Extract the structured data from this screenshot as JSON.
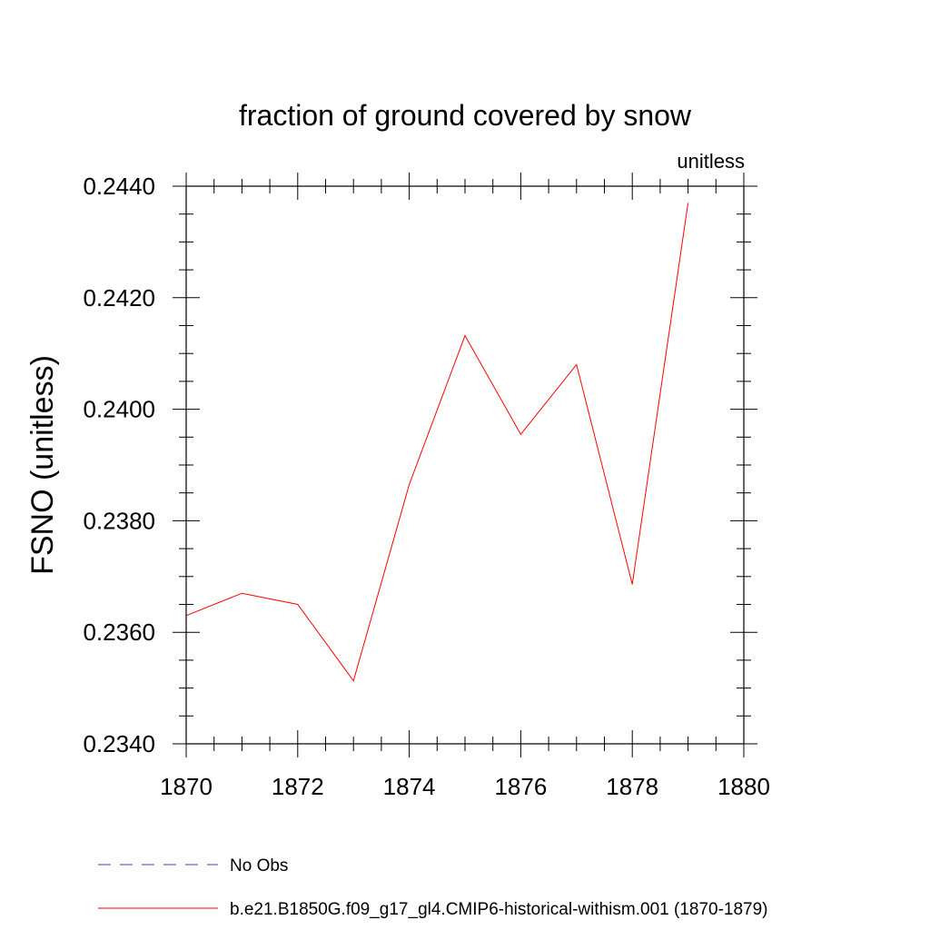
{
  "chart_data": {
    "type": "line",
    "title": "fraction of ground covered by snow",
    "units_label": "unitless",
    "xlabel": "",
    "ylabel": "FSNO  (unitless)",
    "xlim": [
      1870,
      1880
    ],
    "ylim": [
      0.234,
      0.244
    ],
    "x_ticks": [
      1870,
      1872,
      1874,
      1876,
      1878,
      1880
    ],
    "x_tick_labels": [
      "1870",
      "1872",
      "1874",
      "1876",
      "1878",
      "1880"
    ],
    "y_ticks": [
      0.234,
      0.236,
      0.238,
      0.24,
      0.242,
      0.244
    ],
    "y_tick_labels": [
      "0.2340",
      "0.2360",
      "0.2380",
      "0.2400",
      "0.2420",
      "0.2440"
    ],
    "x_minor_step": 0.5,
    "y_minor_step": 0.0005,
    "grid": false,
    "legend_position": "bottom-left",
    "series": [
      {
        "name": "No Obs",
        "color": "#4b3cb4",
        "dash": "dashed",
        "x": [],
        "values": []
      },
      {
        "name": "b.e21.B1850G.f09_g17_gl4.CMIP6-historical-withism.001 (1870-1879)",
        "color": "#ff0000",
        "dash": "solid",
        "x": [
          1870,
          1871,
          1872,
          1873,
          1874,
          1875,
          1876,
          1877,
          1878,
          1879
        ],
        "values": [
          0.2363,
          0.2367,
          0.2365,
          0.23513,
          0.23865,
          0.24132,
          0.23955,
          0.2408,
          0.23686,
          0.2437
        ]
      }
    ]
  }
}
